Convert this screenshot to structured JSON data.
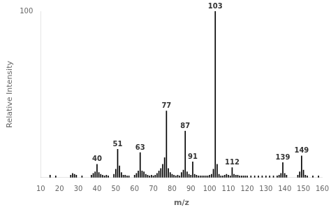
{
  "chart_data": {
    "type": "bar",
    "xlabel": "m/z",
    "ylabel": "Relative Intensity",
    "x": [
      15,
      18,
      26,
      27,
      28,
      29,
      32,
      37,
      38,
      39,
      40,
      41,
      42,
      43,
      44,
      45,
      46,
      49,
      50,
      51,
      52,
      53,
      54,
      55,
      56,
      57,
      60,
      61,
      62,
      63,
      64,
      65,
      66,
      67,
      68,
      69,
      70,
      71,
      72,
      73,
      74,
      75,
      76,
      77,
      78,
      79,
      80,
      81,
      82,
      83,
      84,
      85,
      86,
      87,
      88,
      89,
      90,
      91,
      92,
      93,
      94,
      95,
      96,
      97,
      98,
      99,
      100,
      101,
      102,
      103,
      104,
      105,
      106,
      107,
      108,
      109,
      110,
      111,
      112,
      113,
      114,
      115,
      116,
      117,
      118,
      119,
      120,
      122,
      124,
      126,
      128,
      130,
      132,
      134,
      136,
      137,
      138,
      139,
      140,
      141,
      147,
      148,
      149,
      150,
      151,
      152,
      155,
      158
    ],
    "values": [
      1.5,
      1.0,
      1.5,
      2.5,
      2.0,
      1.5,
      1.0,
      1.5,
      2.5,
      3.5,
      8.0,
      3.0,
      2.0,
      1.5,
      1.0,
      1.5,
      1.0,
      2.0,
      5.0,
      17.0,
      7.0,
      3.0,
      1.5,
      1.5,
      1.0,
      1.0,
      1.5,
      2.5,
      4.0,
      15.0,
      4.0,
      3.5,
      2.0,
      1.5,
      1.0,
      1.5,
      1.0,
      1.5,
      2.5,
      4.0,
      5.5,
      8.0,
      12.0,
      40.0,
      5.5,
      3.0,
      2.0,
      1.5,
      1.0,
      1.5,
      1.0,
      3.0,
      4.5,
      28.0,
      3.5,
      2.0,
      1.5,
      9.5,
      2.0,
      1.5,
      1.0,
      1.0,
      1.0,
      1.0,
      1.0,
      1.0,
      1.5,
      2.0,
      5.0,
      100.0,
      8.0,
      2.0,
      1.0,
      1.0,
      1.5,
      2.0,
      1.5,
      1.0,
      6.0,
      2.0,
      1.5,
      1.5,
      1.0,
      1.0,
      1.0,
      1.0,
      1.0,
      1.0,
      1.0,
      1.0,
      1.0,
      1.0,
      1.0,
      1.0,
      1.0,
      1.5,
      2.5,
      9.0,
      2.5,
      1.5,
      1.5,
      3.5,
      13.0,
      4.5,
      1.5,
      1.0,
      1.0,
      1.0
    ],
    "color": "#000000",
    "xlim": [
      10,
      160
    ],
    "ylim": [
      0,
      100
    ],
    "xticks": [
      10,
      20,
      30,
      40,
      50,
      60,
      70,
      80,
      90,
      100,
      110,
      120,
      130,
      140,
      150,
      160
    ],
    "yticks": [
      100
    ],
    "grid": false,
    "annotations": [
      {
        "x": 40,
        "label": "40"
      },
      {
        "x": 51,
        "label": "51"
      },
      {
        "x": 63,
        "label": "63"
      },
      {
        "x": 77,
        "label": "77"
      },
      {
        "x": 87,
        "label": "87"
      },
      {
        "x": 91,
        "label": "91"
      },
      {
        "x": 103,
        "label": "103"
      },
      {
        "x": 112,
        "label": "112"
      },
      {
        "x": 139,
        "label": "139"
      },
      {
        "x": 149,
        "label": "149"
      }
    ]
  }
}
